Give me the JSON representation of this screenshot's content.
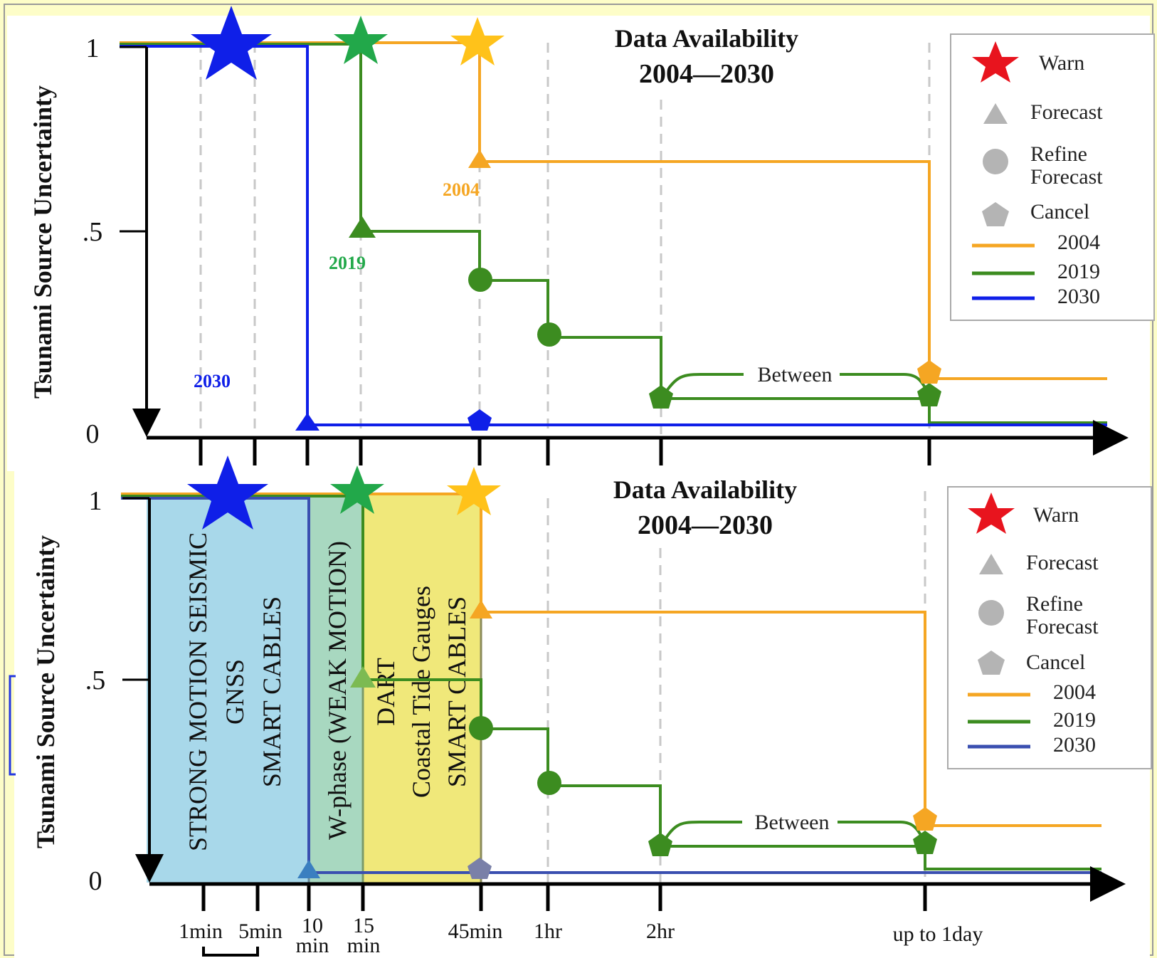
{
  "chart_data": [
    {
      "type": "line",
      "panel": "top",
      "title": "Data Availability",
      "subtitle": "2004—2030",
      "ylabel": "Tsunami Source Uncertainty",
      "yticks": [
        "1",
        ".5",
        "0"
      ],
      "ylim": [
        0,
        1
      ],
      "x_categories": [
        "1min",
        "5min",
        "10 min",
        "15 min",
        "45min",
        "1hr",
        "2hr",
        "up to 1day"
      ],
      "series": [
        {
          "name": "2004",
          "color": "#f5a623",
          "points": [
            [
              "0",
              1.0
            ],
            [
              "45min",
              1.0
            ],
            [
              "45min",
              0.72
            ],
            [
              "up to 1day",
              0.72
            ],
            [
              "up to 1day",
              0.15
            ],
            [
              "end",
              0.15
            ]
          ],
          "markers": [
            {
              "x": "45min",
              "y": 1.0,
              "symbol": "star"
            },
            {
              "x": "45min",
              "y": 0.72,
              "symbol": "triangle"
            },
            {
              "x": "up to 1day",
              "y": 0.16,
              "symbol": "pentagon"
            }
          ]
        },
        {
          "name": "2019",
          "color": "#3c8c20",
          "points": [
            [
              "0",
              1.0
            ],
            [
              "15 min",
              1.0
            ],
            [
              "15 min",
              0.52
            ],
            [
              "45min",
              0.52
            ],
            [
              "45min",
              0.4
            ],
            [
              "1hr",
              0.4
            ],
            [
              "1hr",
              0.26
            ],
            [
              "2hr",
              0.26
            ],
            [
              "2hr",
              0.09
            ],
            [
              "up to 1day",
              0.09
            ],
            [
              "up to 1day",
              0.04
            ],
            [
              "end",
              0.04
            ]
          ],
          "markers": [
            {
              "x": "15 min",
              "y": 1.0,
              "symbol": "star"
            },
            {
              "x": "15 min",
              "y": 0.52,
              "symbol": "triangle"
            },
            {
              "x": "45min",
              "y": 0.4,
              "symbol": "circle"
            },
            {
              "x": "1hr",
              "y": 0.26,
              "symbol": "circle"
            },
            {
              "x": "2hr",
              "y": 0.09,
              "symbol": "pentagon"
            },
            {
              "x": "up to 1day",
              "y": 0.09,
              "symbol": "pentagon"
            }
          ]
        },
        {
          "name": "2030",
          "color": "#0f1fe8",
          "points": [
            [
              "0",
              1.0
            ],
            [
              "10 min",
              1.0
            ],
            [
              "10 min",
              0.03
            ],
            [
              "end",
              0.03
            ]
          ],
          "markers": [
            {
              "x": "1min-5min",
              "y": 1.0,
              "symbol": "star"
            },
            {
              "x": "10 min",
              "y": 0.03,
              "symbol": "triangle"
            },
            {
              "x": "45min",
              "y": 0.03,
              "symbol": "pentagon"
            }
          ]
        }
      ],
      "annotations": [
        "2004",
        "2019",
        "2030",
        "Between"
      ],
      "legend": {
        "position": "top-right",
        "symbols": [
          "Warn",
          "Forecast",
          "Refine Forecast",
          "Cancel"
        ],
        "lines": [
          "2004",
          "2019",
          "2030"
        ]
      }
    },
    {
      "type": "line",
      "panel": "bottom",
      "title": "Data Availability",
      "subtitle": "2004—2030",
      "ylabel": "Tsunami Source Uncertainty",
      "yticks": [
        "1",
        ".5",
        "0"
      ],
      "ylim": [
        0,
        1
      ],
      "x_categories": [
        "1min",
        "5min",
        "10 min",
        "15 min",
        "45min",
        "1hr",
        "2hr",
        "up to 1day"
      ],
      "shaded_regions": [
        {
          "x_range": [
            "0",
            "10 min"
          ],
          "color": "#a8d8ea",
          "lines": [
            "STRONG MOTION SEISMIC",
            "GNSS",
            "SMART CABLES"
          ]
        },
        {
          "x_range": [
            "10 min",
            "15 min"
          ],
          "color": "#a8d8c0",
          "lines": [
            "W-phase (WEAK MOTION)"
          ]
        },
        {
          "x_range": [
            "15 min",
            "45min"
          ],
          "color": "#f0e87a",
          "lines": [
            "DART",
            "Coastal Tide Gauges",
            "SMART CABLES"
          ]
        }
      ],
      "series": [
        {
          "name": "2004",
          "color": "#f5a623",
          "points": [
            [
              "0",
              1.0
            ],
            [
              "45min",
              1.0
            ],
            [
              "45min",
              0.72
            ],
            [
              "up to 1day",
              0.72
            ],
            [
              "up to 1day",
              0.15
            ],
            [
              "end",
              0.15
            ]
          ]
        },
        {
          "name": "2019",
          "color": "#3c8c20",
          "points": [
            [
              "0",
              1.0
            ],
            [
              "15 min",
              1.0
            ],
            [
              "15 min",
              0.52
            ],
            [
              "45min",
              0.52
            ],
            [
              "45min",
              0.4
            ],
            [
              "1hr",
              0.4
            ],
            [
              "1hr",
              0.26
            ],
            [
              "2hr",
              0.26
            ],
            [
              "2hr",
              0.09
            ],
            [
              "up to 1day",
              0.09
            ],
            [
              "up to 1day",
              0.04
            ],
            [
              "end",
              0.04
            ]
          ]
        },
        {
          "name": "2030",
          "color": "#3a4fb0",
          "points": [
            [
              "0",
              1.0
            ],
            [
              "10 min",
              1.0
            ],
            [
              "10 min",
              0.03
            ],
            [
              "end",
              0.03
            ]
          ]
        }
      ],
      "annotations": [
        "Between"
      ],
      "legend": {
        "position": "top-right",
        "symbols": [
          "Warn",
          "Forecast",
          "Refine Forecast",
          "Cancel"
        ],
        "lines": [
          "2004",
          "2019",
          "2030"
        ]
      }
    }
  ],
  "texts": {
    "top": {
      "title": "Data Availability",
      "subtitle": "2004—2030",
      "ylabel": "Tsunami Source Uncertainty",
      "ytick_1": "1",
      "ytick_half": ".5",
      "ytick_0": "0",
      "ann_2004": "2004",
      "ann_2019": "2019",
      "ann_2030": "2030",
      "between": "Between",
      "legend_warn": "Warn",
      "legend_forecast": "Forecast",
      "legend_refine_1": "Refine",
      "legend_refine_2": "Forecast",
      "legend_cancel": "Cancel",
      "legend_2004": "2004",
      "legend_2019": "2019",
      "legend_2030": "2030"
    },
    "bottom": {
      "title": "Data Availability",
      "subtitle": "2004—2030",
      "ylabel": "Tsunami Source Uncertainty",
      "ytick_1": "1",
      "ytick_half": ".5",
      "ytick_0": "0",
      "between": "Between",
      "legend_warn": "Warn",
      "legend_forecast": "Forecast",
      "legend_refine_1": "Refine",
      "legend_refine_2": "Forecast",
      "legend_cancel": "Cancel",
      "legend_2004": "2004",
      "legend_2019": "2019",
      "legend_2030": "2030",
      "region1_l1": "STRONG MOTION SEISMIC",
      "region1_l2": "GNSS",
      "region1_l3": "SMART CABLES",
      "region2_l1": "W-phase (WEAK MOTION)",
      "region3_l1": "DART",
      "region3_l2": "Coastal Tide Gauges",
      "region3_l3": "SMART CABLES"
    },
    "xaxis": {
      "t1min": "1min",
      "t5min": "5min",
      "t10a": "10",
      "t10b": "min",
      "t15a": "15",
      "t15b": "min",
      "t45": "45min",
      "t1hr": "1hr",
      "t2hr": "2hr",
      "tday": "up to 1day"
    }
  },
  "colors": {
    "y2004": "#f5a623",
    "y2019": "#3c8c20",
    "y2030": "#0f1fe8",
    "y2030_bottom": "#3a4fb0",
    "star2019": "#22a84a",
    "star2004": "#ffc21a",
    "warn": "#e8141e",
    "legend_gray": "#b4b4b4",
    "background": "#fdfdc8"
  }
}
